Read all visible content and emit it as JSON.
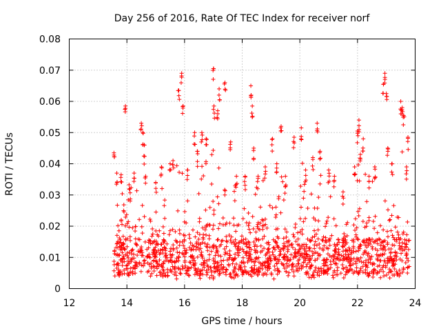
{
  "chart_data": {
    "type": "scatter",
    "title": "Day 256 of 2016, Rate Of TEC Index for receiver norf",
    "xlabel": "GPS time / hours",
    "ylabel": "ROTI / TECUs",
    "xlim": [
      12,
      24
    ],
    "ylim": [
      0,
      0.08
    ],
    "x_ticks": [
      12,
      14,
      16,
      18,
      20,
      22,
      24
    ],
    "x_tick_labels": [
      "12",
      "14",
      "16",
      "18",
      "20",
      "22",
      "24"
    ],
    "y_ticks": [
      0,
      0.01,
      0.02,
      0.03,
      0.04,
      0.05,
      0.06,
      0.07,
      0.08
    ],
    "y_tick_labels": [
      "0",
      "0.01",
      "0.02",
      "0.03",
      "0.04",
      "0.05",
      "0.06",
      "0.07",
      "0.08"
    ],
    "grid": true,
    "marker": "plus",
    "series": [
      {
        "name": "ROTI",
        "color": "#ff0000",
        "data_range": [
          13.55,
          23.8
        ],
        "bulk_level": 0.012,
        "peaks": [
          [
            13.55,
            0.0435
          ],
          [
            13.65,
            0.037
          ],
          [
            13.8,
            0.0365
          ],
          [
            13.95,
            0.0585
          ],
          [
            14.1,
            0.032
          ],
          [
            14.25,
            0.037
          ],
          [
            14.5,
            0.053
          ],
          [
            14.55,
            0.05
          ],
          [
            14.6,
            0.046
          ],
          [
            14.65,
            0.036
          ],
          [
            15.0,
            0.034
          ],
          [
            15.2,
            0.039
          ],
          [
            15.5,
            0.04
          ],
          [
            15.6,
            0.041
          ],
          [
            15.8,
            0.0635
          ],
          [
            15.9,
            0.069
          ],
          [
            15.95,
            0.0585
          ],
          [
            16.1,
            0.038
          ],
          [
            16.35,
            0.05
          ],
          [
            16.45,
            0.044
          ],
          [
            16.6,
            0.05
          ],
          [
            16.75,
            0.048
          ],
          [
            17.0,
            0.0705
          ],
          [
            17.02,
            0.0585
          ],
          [
            17.15,
            0.057
          ],
          [
            17.2,
            0.064
          ],
          [
            17.4,
            0.066
          ],
          [
            17.6,
            0.047
          ],
          [
            17.8,
            0.036
          ],
          [
            18.1,
            0.036
          ],
          [
            18.3,
            0.065
          ],
          [
            18.35,
            0.0585
          ],
          [
            18.4,
            0.045
          ],
          [
            18.55,
            0.036
          ],
          [
            18.8,
            0.039
          ],
          [
            19.05,
            0.048
          ],
          [
            19.2,
            0.04
          ],
          [
            19.35,
            0.052
          ],
          [
            19.5,
            0.036
          ],
          [
            19.8,
            0.0485
          ],
          [
            20.05,
            0.0515
          ],
          [
            20.2,
            0.038
          ],
          [
            20.45,
            0.042
          ],
          [
            20.6,
            0.053
          ],
          [
            20.7,
            0.044
          ],
          [
            21.0,
            0.038
          ],
          [
            21.2,
            0.036
          ],
          [
            21.5,
            0.031
          ],
          [
            21.9,
            0.039
          ],
          [
            22.0,
            0.0505
          ],
          [
            22.05,
            0.054
          ],
          [
            22.1,
            0.043
          ],
          [
            22.2,
            0.048
          ],
          [
            22.4,
            0.036
          ],
          [
            22.6,
            0.039
          ],
          [
            22.9,
            0.0655
          ],
          [
            22.95,
            0.069
          ],
          [
            23.0,
            0.0625
          ],
          [
            23.05,
            0.045
          ],
          [
            23.2,
            0.04
          ],
          [
            23.5,
            0.06
          ],
          [
            23.55,
            0.058
          ],
          [
            23.6,
            0.0555
          ],
          [
            23.7,
            0.039
          ],
          [
            23.75,
            0.0485
          ]
        ]
      }
    ]
  }
}
